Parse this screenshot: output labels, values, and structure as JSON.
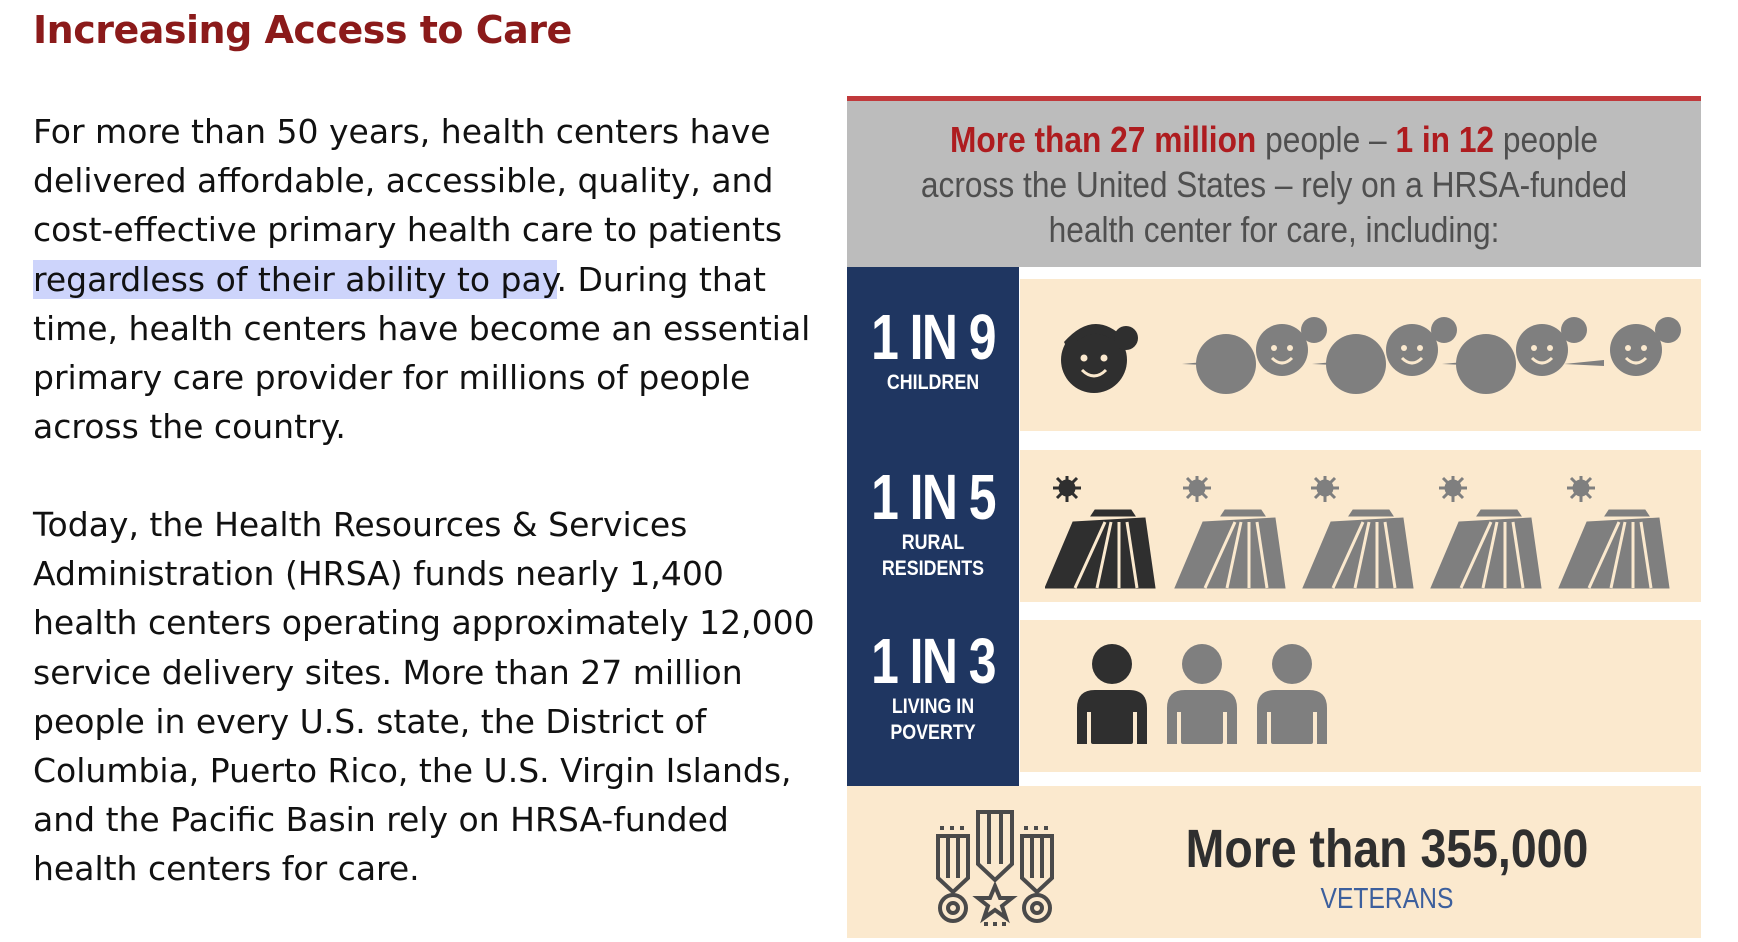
{
  "title": "Increasing Access to Care",
  "para1": {
    "before": "For more than 50 years, health centers have delivered affordable, accessible, quality, and cost-effective primary health care to patients ",
    "highlight": "regardless of their ability to pay",
    "after": ". During that time, health centers have become an essential primary care provider for millions of people across the country."
  },
  "para2": "Today, the Health Resources & Services Administration (HRSA) funds nearly 1,400 health centers operating approximately 12,000 service delivery sites. More than 27 million people in every U.S. state, the District of Columbia, Puerto Rico, the U.S. Virgin Islands, and the Pacific Basin rely on HRSA-funded health centers for care.",
  "infographic": {
    "header": {
      "red1": "More than 27 million",
      "mid1": " people – ",
      "red2": "1 in 12",
      "mid2": " people",
      "line2": "across the United States – rely on a HRSA-funded",
      "line3": "health center for care, including:"
    },
    "stats": [
      {
        "ratio": "1 IN 9",
        "label_lines": [
          "CHILDREN"
        ]
      },
      {
        "ratio": "1 IN 5",
        "label_lines": [
          "RURAL",
          "RESIDENTS"
        ]
      },
      {
        "ratio": "1 IN 3",
        "label_lines": [
          "LIVING IN",
          "POVERTY"
        ]
      }
    ],
    "veterans": {
      "number": "More than 355,000",
      "label": "VETERANS"
    },
    "icons": {
      "children": "child-face-icon",
      "rural": "farm-field-icon",
      "poverty": "person-icon",
      "veterans": "medal-icon"
    },
    "colors": {
      "accent_red": "#ae1c1f",
      "navy": "#1f3661",
      "band": "#fbe9ce",
      "highlighted_icon": "#2f2f2f",
      "muted_icon": "#7f7f7f"
    }
  }
}
